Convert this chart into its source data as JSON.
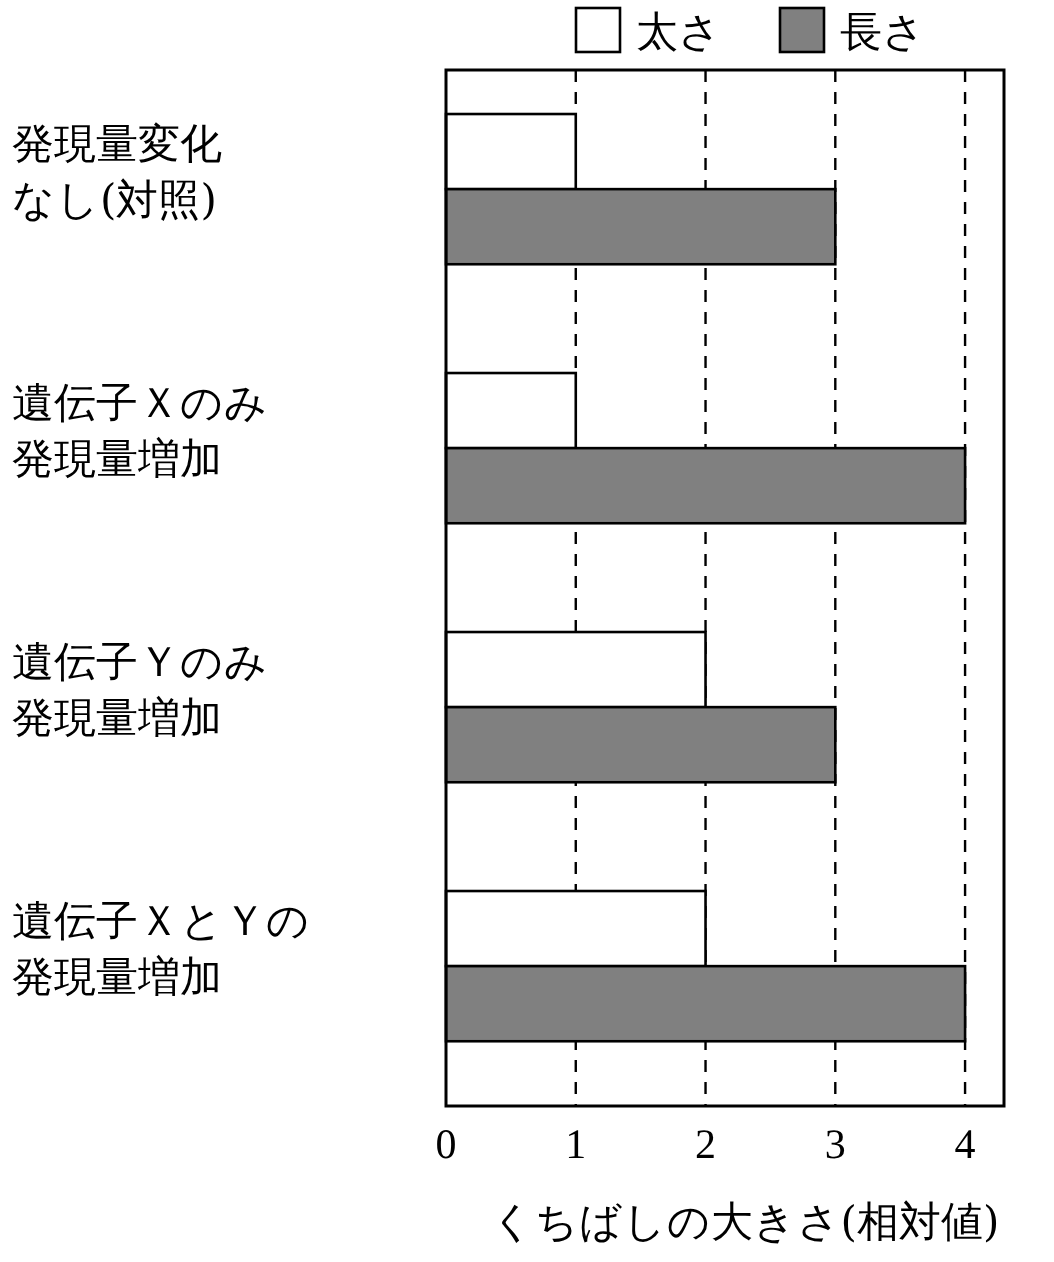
{
  "chart_data": {
    "type": "bar",
    "orientation": "horizontal",
    "xlabel": "くちばしの大きさ(相対値)",
    "categories": [
      "発現量変化なし(対照)",
      "遺伝子Ｘのみ発現量増加",
      "遺伝子Ｙのみ発現量増加",
      "遺伝子ＸとＹの発現量増加"
    ],
    "series": [
      {
        "name": "太さ",
        "color": "#ffffff",
        "values": [
          1,
          1,
          2,
          2
        ]
      },
      {
        "name": "長さ",
        "color": "#808080",
        "values": [
          3,
          4,
          3,
          4
        ]
      }
    ],
    "xlim": [
      0,
      4.3
    ],
    "xticks": [
      0,
      1,
      2,
      3,
      4
    ],
    "grid": "x",
    "legend": "top"
  }
}
